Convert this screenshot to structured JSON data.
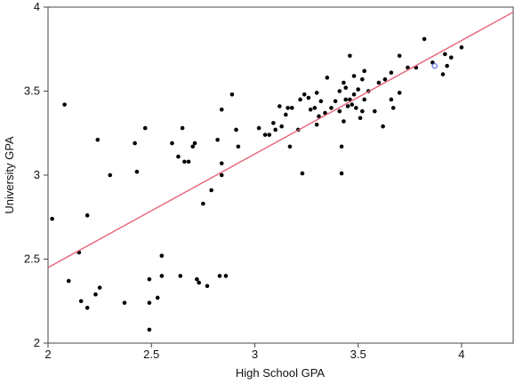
{
  "chart_data": {
    "type": "scatter",
    "xlabel": "High School GPA",
    "ylabel": "University GPA",
    "xlim": [
      2.0,
      4.25
    ],
    "ylim": [
      2.0,
      4.0
    ],
    "xticks": [
      2,
      2.5,
      3,
      3.5,
      4
    ],
    "yticks": [
      2,
      2.5,
      3,
      3.5,
      4
    ],
    "xtick_labels": [
      "2",
      "2.5",
      "3",
      "3.5",
      "4"
    ],
    "ytick_labels": [
      "2",
      "2.5",
      "3",
      "3.5",
      "4"
    ],
    "grid": false,
    "point_color": "#000000",
    "highlight_color": "#5b6ee1",
    "line_color": "#e8647a",
    "regression_line": {
      "x": [
        2.0,
        4.25
      ],
      "y": [
        2.45,
        3.97
      ]
    },
    "highlighted_point": {
      "x": 3.87,
      "y": 3.65
    },
    "points": [
      [
        2.02,
        2.74
      ],
      [
        2.08,
        3.42
      ],
      [
        2.1,
        2.37
      ],
      [
        2.15,
        2.54
      ],
      [
        2.16,
        2.25
      ],
      [
        2.19,
        2.76
      ],
      [
        2.19,
        2.21
      ],
      [
        2.23,
        2.29
      ],
      [
        2.24,
        3.21
      ],
      [
        2.25,
        2.33
      ],
      [
        2.3,
        3.0
      ],
      [
        2.37,
        2.24
      ],
      [
        2.42,
        3.19
      ],
      [
        2.43,
        3.02
      ],
      [
        2.47,
        3.28
      ],
      [
        2.49,
        2.38
      ],
      [
        2.49,
        2.24
      ],
      [
        2.49,
        2.08
      ],
      [
        2.53,
        2.27
      ],
      [
        2.55,
        2.4
      ],
      [
        2.55,
        2.52
      ],
      [
        2.6,
        3.19
      ],
      [
        2.63,
        3.11
      ],
      [
        2.64,
        2.4
      ],
      [
        2.65,
        3.28
      ],
      [
        2.66,
        3.08
      ],
      [
        2.68,
        3.08
      ],
      [
        2.7,
        3.17
      ],
      [
        2.71,
        3.19
      ],
      [
        2.72,
        2.38
      ],
      [
        2.73,
        2.36
      ],
      [
        2.75,
        2.83
      ],
      [
        2.77,
        2.34
      ],
      [
        2.79,
        2.91
      ],
      [
        2.82,
        3.21
      ],
      [
        2.83,
        2.4
      ],
      [
        2.84,
        3.07
      ],
      [
        2.84,
        3.0
      ],
      [
        2.84,
        3.39
      ],
      [
        2.86,
        2.4
      ],
      [
        2.89,
        3.48
      ],
      [
        2.91,
        3.27
      ],
      [
        2.92,
        3.17
      ],
      [
        3.02,
        3.28
      ],
      [
        3.05,
        3.24
      ],
      [
        3.07,
        3.24
      ],
      [
        3.09,
        3.31
      ],
      [
        3.1,
        3.27
      ],
      [
        3.12,
        3.41
      ],
      [
        3.13,
        3.29
      ],
      [
        3.15,
        3.36
      ],
      [
        3.16,
        3.4
      ],
      [
        3.17,
        3.17
      ],
      [
        3.18,
        3.4
      ],
      [
        3.21,
        3.27
      ],
      [
        3.22,
        3.45
      ],
      [
        3.23,
        3.01
      ],
      [
        3.24,
        3.48
      ],
      [
        3.26,
        3.46
      ],
      [
        3.27,
        3.39
      ],
      [
        3.29,
        3.4
      ],
      [
        3.3,
        3.49
      ],
      [
        3.3,
        3.3
      ],
      [
        3.31,
        3.35
      ],
      [
        3.32,
        3.44
      ],
      [
        3.34,
        3.37
      ],
      [
        3.35,
        3.58
      ],
      [
        3.37,
        3.4
      ],
      [
        3.39,
        3.44
      ],
      [
        3.41,
        3.38
      ],
      [
        3.41,
        3.5
      ],
      [
        3.42,
        3.01
      ],
      [
        3.42,
        3.17
      ],
      [
        3.43,
        3.32
      ],
      [
        3.43,
        3.55
      ],
      [
        3.44,
        3.52
      ],
      [
        3.44,
        3.45
      ],
      [
        3.45,
        3.41
      ],
      [
        3.46,
        3.71
      ],
      [
        3.46,
        3.45
      ],
      [
        3.47,
        3.42
      ],
      [
        3.48,
        3.48
      ],
      [
        3.48,
        3.59
      ],
      [
        3.49,
        3.4
      ],
      [
        3.5,
        3.51
      ],
      [
        3.51,
        3.34
      ],
      [
        3.52,
        3.38
      ],
      [
        3.52,
        3.57
      ],
      [
        3.53,
        3.62
      ],
      [
        3.53,
        3.45
      ],
      [
        3.55,
        3.5
      ],
      [
        3.58,
        3.38
      ],
      [
        3.6,
        3.55
      ],
      [
        3.62,
        3.29
      ],
      [
        3.63,
        3.57
      ],
      [
        3.66,
        3.45
      ],
      [
        3.66,
        3.61
      ],
      [
        3.67,
        3.4
      ],
      [
        3.7,
        3.71
      ],
      [
        3.7,
        3.49
      ],
      [
        3.74,
        3.64
      ],
      [
        3.78,
        3.64
      ],
      [
        3.82,
        3.81
      ],
      [
        3.86,
        3.67
      ],
      [
        3.91,
        3.6
      ],
      [
        3.92,
        3.72
      ],
      [
        3.93,
        3.65
      ],
      [
        3.95,
        3.7
      ],
      [
        4.0,
        3.76
      ]
    ]
  }
}
